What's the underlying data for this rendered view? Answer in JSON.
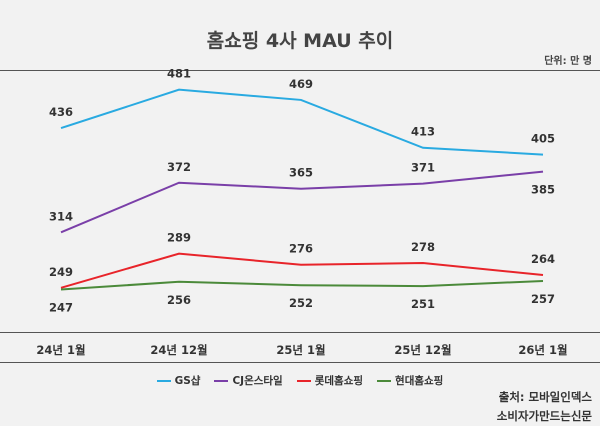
{
  "header": {
    "title": "홈쇼핑 4사 MAU 추이",
    "unit": "단위: 만 명"
  },
  "source": {
    "line1": "출처: 모바일인덱스",
    "line2": "소비자가만드는신문"
  },
  "colors": {
    "background": "#f2f2f2",
    "rule": "#555555"
  },
  "chart_data": {
    "type": "line",
    "title": "홈쇼핑 4사 MAU 추이",
    "unit": "만 명",
    "categories": [
      "24년 1월",
      "24년 12월",
      "25년 1월",
      "25년 12월",
      "26년 1월"
    ],
    "ylim": [
      230,
      490
    ],
    "grid": false,
    "legend_position": "bottom",
    "series": [
      {
        "name": "GS샵",
        "color": "#29aae1",
        "values": [
          436,
          481,
          469,
          413,
          405
        ],
        "label_side": [
          "above",
          "above",
          "above",
          "above",
          "above"
        ]
      },
      {
        "name": "CJ온스타일",
        "color": "#7a3fa8",
        "values": [
          314,
          372,
          365,
          371,
          385
        ],
        "label_side": [
          "above",
          "above",
          "above",
          "above",
          "below"
        ]
      },
      {
        "name": "롯데홈쇼핑",
        "color": "#e8242a",
        "values": [
          249,
          289,
          276,
          278,
          264
        ],
        "label_side": [
          "above",
          "above",
          "above",
          "above",
          "above"
        ]
      },
      {
        "name": "현대홈쇼핑",
        "color": "#4b8a3a",
        "values": [
          247,
          256,
          252,
          251,
          257
        ],
        "label_side": [
          "below",
          "below",
          "below",
          "below",
          "below"
        ]
      }
    ]
  }
}
